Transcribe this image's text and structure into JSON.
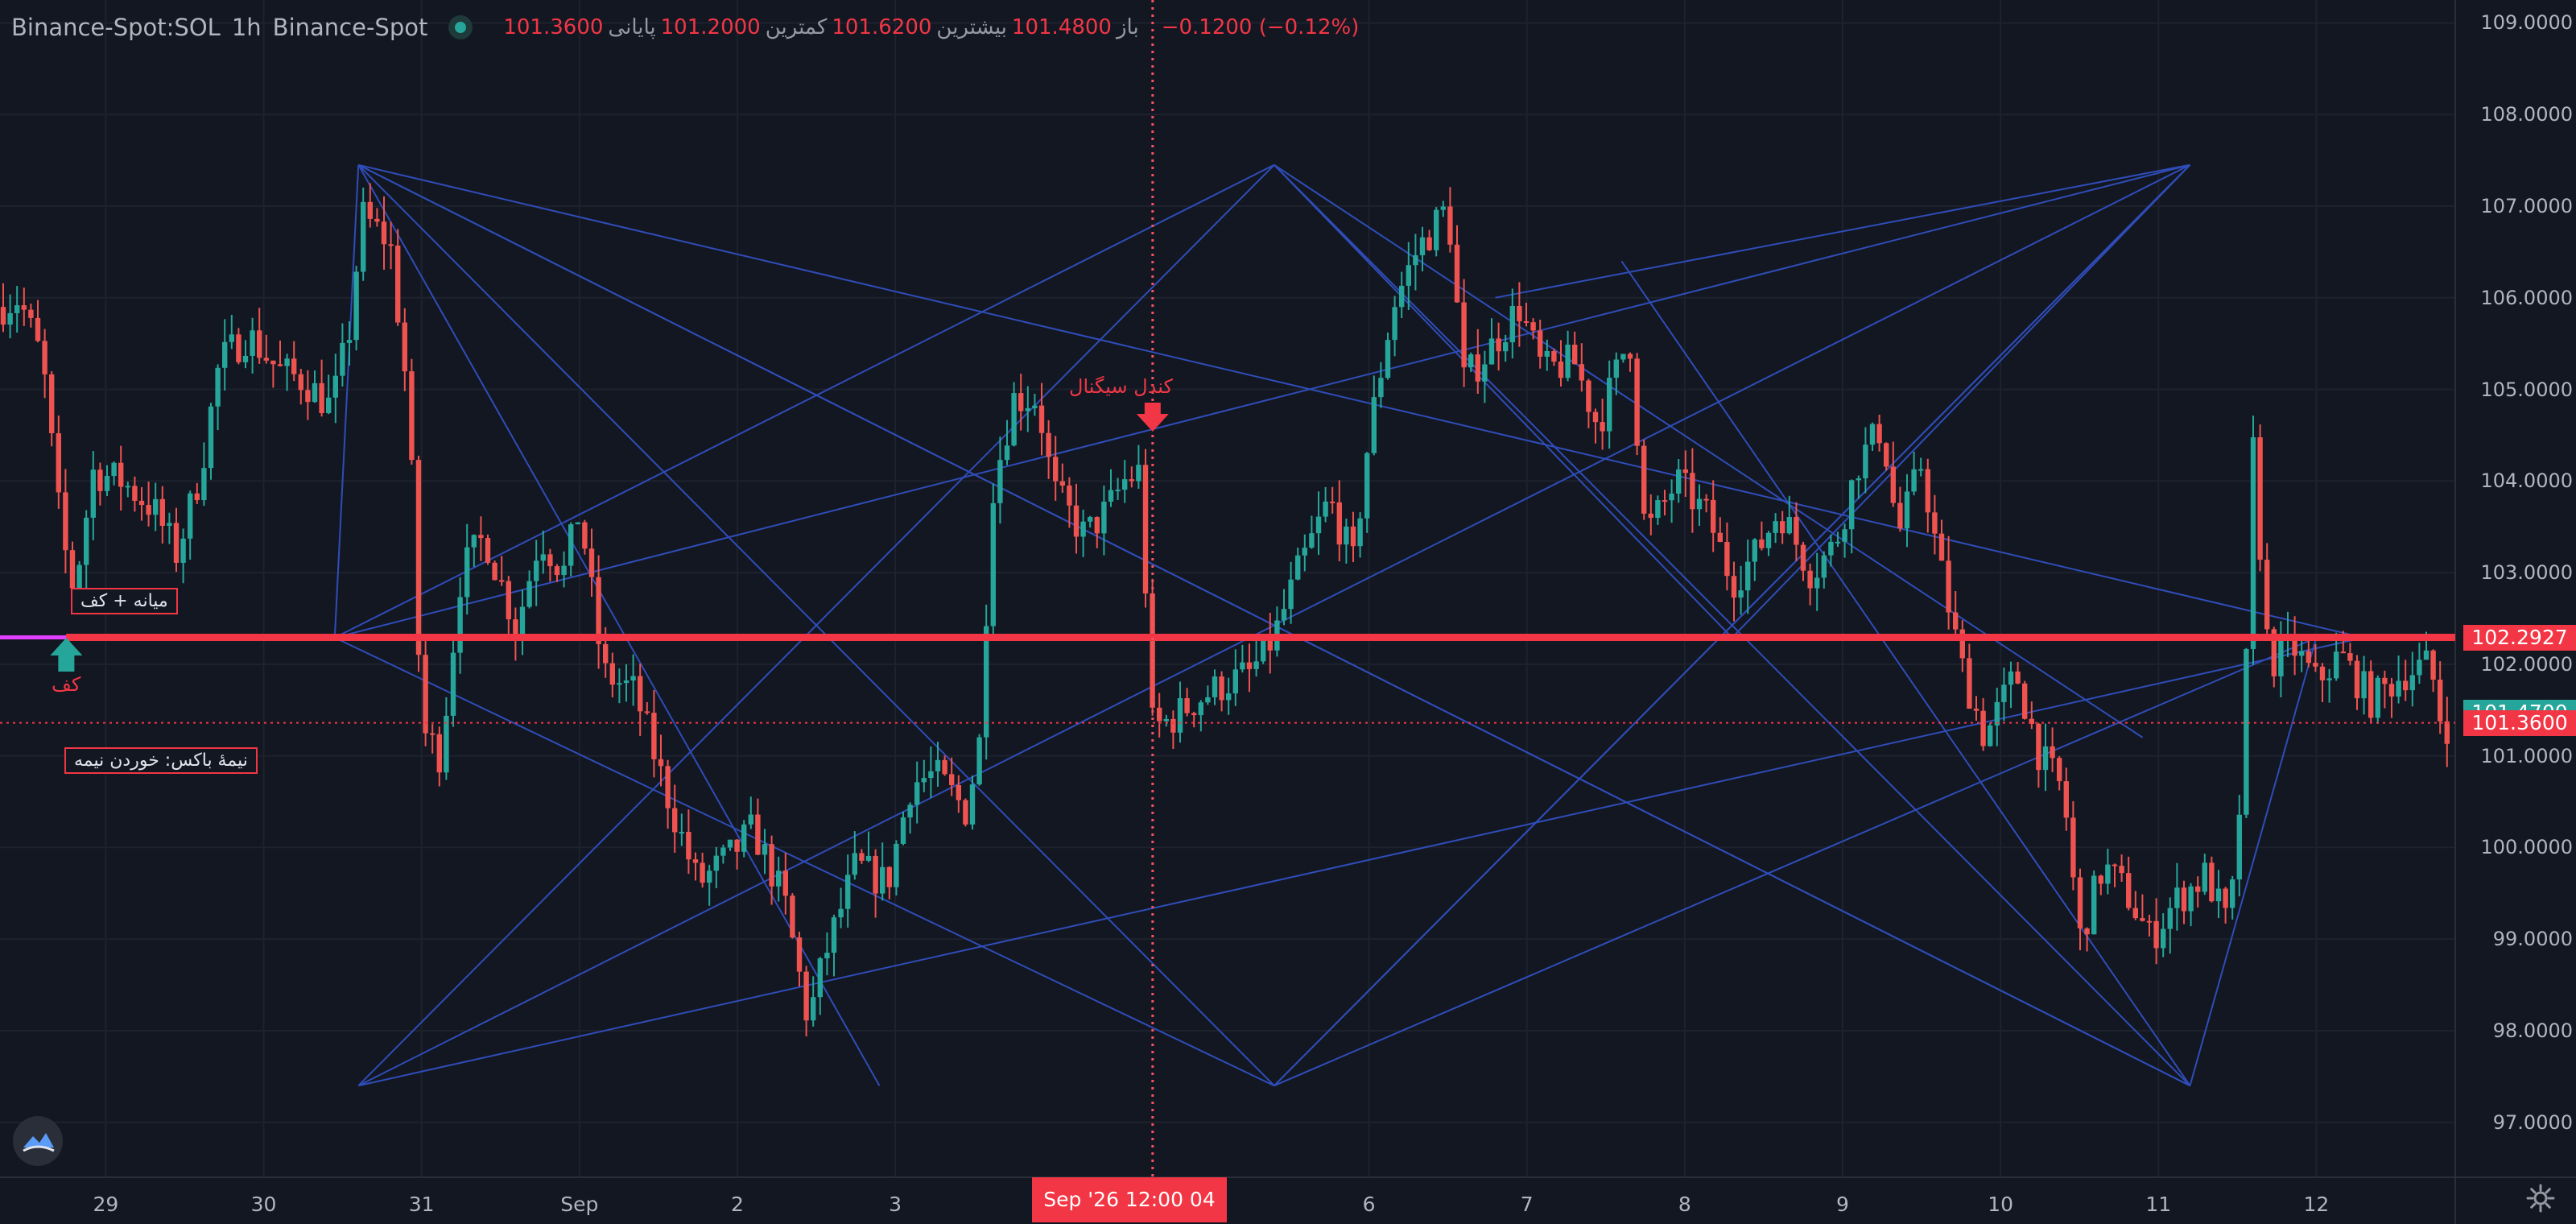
{
  "header": {
    "symbol": "Binance-Spot:SOL",
    "interval": "1h",
    "exchange": "Binance-Spot",
    "open_label": "باز",
    "open": "101.4800",
    "high_label": "بیشترین",
    "high": "101.6200",
    "low_label": "کمترین",
    "low": "101.2000",
    "close_label": "پایانی",
    "close": "101.3600",
    "change": "−0.1200 (−0.12%)"
  },
  "colors": {
    "background": "#131722",
    "up": "#26a69a",
    "down": "#ef5350",
    "pattern_lines": "#2f4db8",
    "support_line": "#f23645",
    "magenta": "#e040fb"
  },
  "annotations": {
    "signal_label": "کندل سیگنال",
    "floor_label": "کف",
    "median_floor": "میانه + کف",
    "half_box": "نیمهٔ باکس: خوردن نیمه"
  },
  "price_badges": {
    "support": "102.2927",
    "current_green": "101.4700",
    "current_red": "101.3600"
  },
  "crosshair_time": "Sep '26  12:00 04",
  "chart_data": {
    "type": "candlestick",
    "title": "",
    "xlabel": "",
    "ylabel": "",
    "ylim": [
      96.4,
      109.25
    ],
    "y_ticks": [
      "97.0000",
      "98.0000",
      "99.0000",
      "100.0000",
      "101.0000",
      "102.0000",
      "103.0000",
      "104.0000",
      "105.0000",
      "106.0000",
      "107.0000",
      "108.0000",
      "109.0000"
    ],
    "x_ticks": [
      {
        "label": "29",
        "day": 29
      },
      {
        "label": "30",
        "day": 30
      },
      {
        "label": "31",
        "day": 31
      },
      {
        "label": "Sep",
        "day": 32
      },
      {
        "label": "2",
        "day": 33
      },
      {
        "label": "3",
        "day": 34
      },
      {
        "label": "6",
        "day": 37
      },
      {
        "label": "7",
        "day": 38
      },
      {
        "label": "8",
        "day": 39
      },
      {
        "label": "9",
        "day": 40
      },
      {
        "label": "10",
        "day": 41
      },
      {
        "label": "11",
        "day": 42
      },
      {
        "label": "12",
        "day": 43
      }
    ],
    "x_range_days": [
      28.33,
      43.88
    ],
    "price_anchors": [
      {
        "day": 28.33,
        "price": 105.9
      },
      {
        "day": 28.45,
        "price": 106.0
      },
      {
        "day": 28.6,
        "price": 105.3
      },
      {
        "day": 28.72,
        "price": 103.4
      },
      {
        "day": 28.8,
        "price": 102.8
      },
      {
        "day": 28.92,
        "price": 104.1
      },
      {
        "day": 29.1,
        "price": 104.0
      },
      {
        "day": 29.3,
        "price": 103.7
      },
      {
        "day": 29.45,
        "price": 103.2
      },
      {
        "day": 29.6,
        "price": 104.1
      },
      {
        "day": 29.72,
        "price": 105.3
      },
      {
        "day": 29.9,
        "price": 105.6
      },
      {
        "day": 30.1,
        "price": 105.2
      },
      {
        "day": 30.25,
        "price": 105.1
      },
      {
        "day": 30.43,
        "price": 104.8
      },
      {
        "day": 30.55,
        "price": 105.7
      },
      {
        "day": 30.62,
        "price": 106.9
      },
      {
        "day": 30.8,
        "price": 106.6
      },
      {
        "day": 30.92,
        "price": 104.8
      },
      {
        "day": 31.0,
        "price": 101.3
      },
      {
        "day": 31.12,
        "price": 101.0
      },
      {
        "day": 31.25,
        "price": 103.0
      },
      {
        "day": 31.4,
        "price": 103.4
      },
      {
        "day": 31.6,
        "price": 102.4
      },
      {
        "day": 31.75,
        "price": 103.4
      },
      {
        "day": 31.9,
        "price": 103.0
      },
      {
        "day": 32.0,
        "price": 103.7
      },
      {
        "day": 32.15,
        "price": 101.9
      },
      {
        "day": 32.35,
        "price": 101.7
      },
      {
        "day": 32.55,
        "price": 100.6
      },
      {
        "day": 32.75,
        "price": 99.6
      },
      {
        "day": 32.95,
        "price": 99.9
      },
      {
        "day": 33.1,
        "price": 100.2
      },
      {
        "day": 33.3,
        "price": 99.4
      },
      {
        "day": 33.45,
        "price": 98.1
      },
      {
        "day": 33.55,
        "price": 98.8
      },
      {
        "day": 33.75,
        "price": 99.8
      },
      {
        "day": 33.95,
        "price": 99.6
      },
      {
        "day": 34.1,
        "price": 100.7
      },
      {
        "day": 34.25,
        "price": 100.8
      },
      {
        "day": 34.45,
        "price": 100.4
      },
      {
        "day": 34.55,
        "price": 101.3
      },
      {
        "day": 34.6,
        "price": 103.8
      },
      {
        "day": 34.75,
        "price": 104.9
      },
      {
        "day": 34.9,
        "price": 104.9
      },
      {
        "day": 35.0,
        "price": 103.9
      },
      {
        "day": 35.2,
        "price": 103.4
      },
      {
        "day": 35.35,
        "price": 103.7
      },
      {
        "day": 35.45,
        "price": 104.0
      },
      {
        "day": 35.55,
        "price": 104.1
      },
      {
        "day": 35.63,
        "price": 101.3
      },
      {
        "day": 35.75,
        "price": 101.4
      },
      {
        "day": 35.9,
        "price": 101.6
      },
      {
        "day": 36.1,
        "price": 101.8
      },
      {
        "day": 36.25,
        "price": 101.9
      },
      {
        "day": 36.4,
        "price": 102.3
      },
      {
        "day": 36.55,
        "price": 103.0
      },
      {
        "day": 36.75,
        "price": 103.8
      },
      {
        "day": 36.9,
        "price": 103.1
      },
      {
        "day": 37.0,
        "price": 104.5
      },
      {
        "day": 37.15,
        "price": 105.9
      },
      {
        "day": 37.3,
        "price": 106.5
      },
      {
        "day": 37.5,
        "price": 107.0
      },
      {
        "day": 37.6,
        "price": 105.1
      },
      {
        "day": 37.75,
        "price": 105.4
      },
      {
        "day": 37.95,
        "price": 105.9
      },
      {
        "day": 38.1,
        "price": 105.2
      },
      {
        "day": 38.3,
        "price": 105.3
      },
      {
        "day": 38.45,
        "price": 104.6
      },
      {
        "day": 38.65,
        "price": 105.6
      },
      {
        "day": 38.75,
        "price": 103.4
      },
      {
        "day": 38.95,
        "price": 104.0
      },
      {
        "day": 39.15,
        "price": 103.6
      },
      {
        "day": 39.3,
        "price": 102.9
      },
      {
        "day": 39.45,
        "price": 103.2
      },
      {
        "day": 39.6,
        "price": 103.7
      },
      {
        "day": 39.8,
        "price": 103.0
      },
      {
        "day": 39.95,
        "price": 103.3
      },
      {
        "day": 40.1,
        "price": 104.2
      },
      {
        "day": 40.25,
        "price": 104.6
      },
      {
        "day": 40.35,
        "price": 103.4
      },
      {
        "day": 40.5,
        "price": 104.2
      },
      {
        "day": 40.6,
        "price": 103.2
      },
      {
        "day": 40.75,
        "price": 102.0
      },
      {
        "day": 40.9,
        "price": 101.2
      },
      {
        "day": 41.1,
        "price": 101.9
      },
      {
        "day": 41.25,
        "price": 101.0
      },
      {
        "day": 41.4,
        "price": 100.6
      },
      {
        "day": 41.5,
        "price": 99.0
      },
      {
        "day": 41.65,
        "price": 99.8
      },
      {
        "day": 41.8,
        "price": 99.5
      },
      {
        "day": 41.95,
        "price": 99.0
      },
      {
        "day": 42.1,
        "price": 99.4
      },
      {
        "day": 42.3,
        "price": 99.7
      },
      {
        "day": 42.45,
        "price": 99.1
      },
      {
        "day": 42.55,
        "price": 101.2
      },
      {
        "day": 42.58,
        "price": 104.8
      },
      {
        "day": 42.7,
        "price": 102.0
      },
      {
        "day": 42.85,
        "price": 102.2
      },
      {
        "day": 43.0,
        "price": 101.8
      },
      {
        "day": 43.15,
        "price": 102.1
      },
      {
        "day": 43.35,
        "price": 101.6
      },
      {
        "day": 43.55,
        "price": 101.9
      },
      {
        "day": 43.72,
        "price": 102.0
      },
      {
        "day": 43.8,
        "price": 101.3
      },
      {
        "day": 43.88,
        "price": 101.4
      }
    ],
    "pattern_lines": [
      [
        [
          30.6,
          107.45
        ],
        [
          43.3,
          102.29
        ]
      ],
      [
        [
          30.6,
          107.45
        ],
        [
          30.45,
          102.29
        ]
      ],
      [
        [
          30.6,
          107.45
        ],
        [
          33.9,
          97.4
        ]
      ],
      [
        [
          30.6,
          107.45
        ],
        [
          36.4,
          97.4
        ]
      ],
      [
        [
          36.4,
          107.45
        ],
        [
          30.45,
          102.29
        ]
      ],
      [
        [
          36.4,
          107.45
        ],
        [
          30.6,
          97.4
        ]
      ],
      [
        [
          36.4,
          107.45
        ],
        [
          39.3,
          102.29
        ]
      ],
      [
        [
          36.4,
          107.45
        ],
        [
          42.2,
          97.4
        ]
      ],
      [
        [
          42.2,
          107.45
        ],
        [
          30.6,
          97.4
        ]
      ],
      [
        [
          42.2,
          107.45
        ],
        [
          36.4,
          97.4
        ]
      ],
      [
        [
          42.2,
          107.45
        ],
        [
          30.45,
          102.29
        ]
      ],
      [
        [
          30.6,
          97.4
        ],
        [
          43.3,
          102.29
        ]
      ],
      [
        [
          30.45,
          102.29
        ],
        [
          36.4,
          97.4
        ]
      ],
      [
        [
          36.4,
          97.4
        ],
        [
          42.2,
          107.45
        ]
      ],
      [
        [
          36.4,
          97.4
        ],
        [
          43.0,
          102.29
        ]
      ],
      [
        [
          42.2,
          97.4
        ],
        [
          38.6,
          106.4
        ]
      ],
      [
        [
          42.2,
          97.4
        ],
        [
          30.6,
          107.45
        ]
      ],
      [
        [
          42.2,
          97.4
        ],
        [
          43.0,
          102.29
        ]
      ],
      [
        [
          37.8,
          106.0
        ],
        [
          42.2,
          107.45
        ]
      ],
      [
        [
          39.3,
          102.29
        ],
        [
          42.2,
          107.45
        ]
      ],
      [
        [
          36.4,
          107.45
        ],
        [
          41.9,
          101.2
        ]
      ],
      [
        [
          30.6,
          107.45
        ],
        [
          42.2,
          97.4
        ]
      ]
    ],
    "support_level": 102.2927,
    "last_price": 101.36,
    "crosshair_day": 35.63,
    "signal_day": 35.63,
    "floor_day": 28.75
  }
}
